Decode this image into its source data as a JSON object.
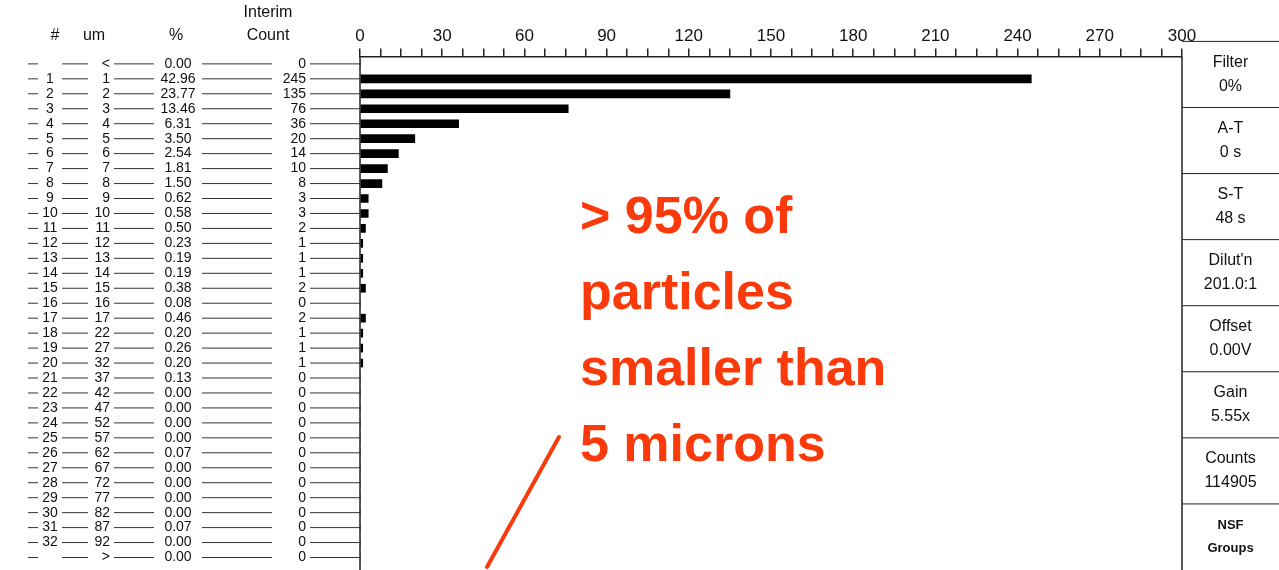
{
  "chart_data": {
    "type": "bar",
    "orientation": "horizontal",
    "ylabel": "um",
    "categories": [
      "<",
      "1",
      "2",
      "3",
      "4",
      "5",
      "6",
      "7",
      "8",
      "9",
      "10",
      "11",
      "12",
      "13",
      "14",
      "15",
      "16",
      "17",
      "22",
      "27",
      "32",
      "37",
      "42",
      "47",
      "52",
      "57",
      "62",
      "67",
      "72",
      "77",
      "82",
      "87",
      "92",
      ">"
    ],
    "series": [
      {
        "color": "#000000",
        "axis": "x2",
        "values": [
          0,
          245,
          135,
          76,
          36,
          20,
          14,
          10,
          8,
          3,
          3,
          2,
          1,
          1,
          1,
          2,
          0,
          2,
          1,
          1,
          1,
          0,
          0,
          0,
          0,
          0,
          0,
          0,
          0,
          0,
          0,
          0,
          0,
          0
        ]
      }
    ],
    "data_labels": true,
    "x2lim": [
      0,
      300
    ],
    "x2ticks": [
      0,
      {
        "value": 7.5,
        "label": null
      },
      {
        "value": 15,
        "label": null
      },
      {
        "value": 22.5,
        "label": null
      },
      30,
      {
        "value": 37.5,
        "label": null
      },
      {
        "value": 45,
        "label": null
      },
      {
        "value": 52.5,
        "label": null
      },
      60,
      {
        "value": 67.5,
        "label": null
      },
      {
        "value": 75,
        "label": null
      },
      {
        "value": 82.5,
        "label": null
      },
      90,
      {
        "value": 97.5,
        "label": null
      },
      {
        "value": 105,
        "label": null
      },
      {
        "value": 112.5,
        "label": null
      },
      120,
      {
        "value": 127.5,
        "label": null
      },
      {
        "value": 135,
        "label": null
      },
      {
        "value": 142.5,
        "label": null
      },
      150,
      {
        "value": 157.5,
        "label": null
      },
      {
        "value": 165,
        "label": null
      },
      {
        "value": 172.5,
        "label": null
      },
      180,
      {
        "value": 187.5,
        "label": null
      },
      {
        "value": 195,
        "label": null
      },
      {
        "value": 202.5,
        "label": null
      },
      210,
      {
        "value": 217.5,
        "label": null
      },
      {
        "value": 225,
        "label": null
      },
      {
        "value": 232.5,
        "label": null
      },
      240,
      {
        "value": 247.5,
        "label": null
      },
      {
        "value": 255,
        "label": null
      },
      {
        "value": 262.5,
        "label": null
      },
      270,
      {
        "value": 277.5,
        "label": null
      },
      {
        "value": 285,
        "label": null
      },
      {
        "value": 292.5,
        "label": null
      },
      300
    ],
    "legend": false,
    "grid": false,
    "annotations": [
      "#",
      "%",
      "Interim",
      "Count",
      "Filter",
      "0%",
      "A-T",
      "0 s",
      "S-T",
      "48 s",
      "Dilut'n",
      "201.0:1",
      "Offset",
      "0.00V",
      "Gain",
      "5.55x",
      "Counts",
      "114905",
      "NSF",
      "Groups",
      "> 95% of",
      "particles",
      "smaller than",
      "5 microns",
      "1",
      "2",
      "3",
      "4",
      "5",
      "6",
      "7",
      "8",
      "9",
      "10",
      "11",
      "12",
      "13",
      "14",
      "15",
      "16",
      "17",
      "18",
      "19",
      "20",
      "21",
      "22",
      "23",
      "24",
      "25",
      "26",
      "27",
      "28",
      "29",
      "30",
      "31",
      "32",
      "0.00",
      "42.96",
      "23.77",
      "13.46",
      "6.31",
      "3.50",
      "2.54",
      "1.81",
      "1.50",
      "0.62",
      "0.58",
      "0.50",
      "0.23",
      "0.19",
      "0.19",
      "0.38",
      "0.08",
      "0.46",
      "0.20",
      "0.26",
      "0.20",
      "0.13",
      "0.00",
      "0.00",
      "0.00",
      "0.00",
      "0.07",
      "0.00",
      "0.00",
      "0.00",
      "0.00",
      "0.07",
      "0.00",
      "0.00"
    ]
  }
}
